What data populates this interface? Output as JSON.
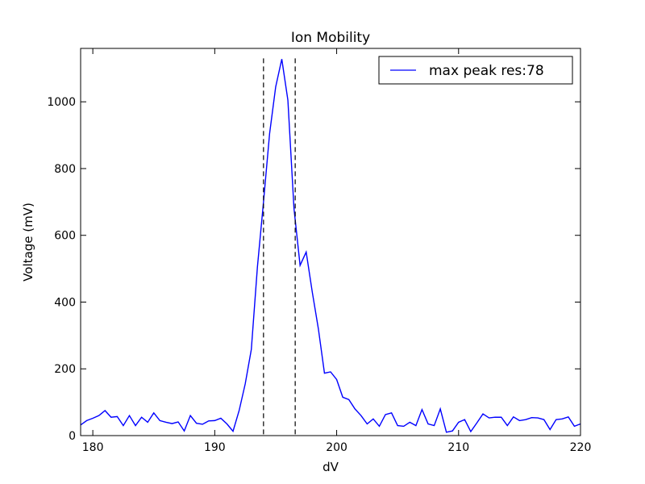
{
  "chart_data": {
    "type": "line",
    "title": "Ion Mobility",
    "xlabel": "dV",
    "ylabel": "Voltage (mV)",
    "xlim": [
      179,
      220
    ],
    "ylim": [
      0,
      1160
    ],
    "xticks": [
      180,
      190,
      200,
      210,
      220
    ],
    "yticks": [
      0,
      200,
      400,
      600,
      800,
      1000
    ],
    "grid": false,
    "legend_position": "top-right",
    "series": [
      {
        "name": "max peak res:78",
        "color": "#0000ff",
        "x": [
          179.0,
          179.5,
          180.0,
          180.5,
          181.0,
          181.5,
          182.0,
          182.5,
          183.0,
          183.5,
          184.0,
          184.5,
          185.0,
          185.5,
          186.0,
          186.5,
          187.0,
          187.5,
          188.0,
          188.5,
          189.0,
          189.5,
          190.0,
          190.5,
          191.0,
          191.5,
          192.0,
          192.5,
          193.0,
          193.5,
          194.0,
          194.5,
          195.0,
          195.5,
          196.0,
          196.5,
          197.0,
          197.5,
          198.0,
          198.5,
          199.0,
          199.5,
          200.0,
          200.5,
          201.0,
          201.5,
          202.0,
          202.5,
          203.0,
          203.5,
          204.0,
          204.5,
          205.0,
          205.5,
          206.0,
          206.5,
          207.0,
          207.5,
          208.0,
          208.5,
          209.0,
          209.5,
          210.0,
          210.5,
          211.0,
          211.5,
          212.0,
          212.5,
          213.0,
          213.5,
          214.0,
          214.5,
          215.0,
          215.5,
          216.0,
          216.5,
          217.0,
          217.5,
          218.0,
          218.5,
          219.0,
          219.5,
          220.0
        ],
        "y": [
          32,
          45,
          52,
          60,
          75,
          55,
          57,
          30,
          60,
          30,
          55,
          40,
          68,
          45,
          40,
          36,
          41,
          14,
          60,
          37,
          34,
          44,
          45,
          52,
          35,
          13,
          75,
          155,
          258,
          505,
          700,
          905,
          1045,
          1128,
          1005,
          680,
          510,
          550,
          430,
          320,
          187,
          191,
          168,
          115,
          108,
          80,
          60,
          35,
          50,
          28,
          63,
          68,
          30,
          28,
          40,
          30,
          78,
          35,
          30,
          80,
          10,
          14,
          40,
          48,
          12,
          38,
          65,
          53,
          55,
          55,
          30,
          56,
          45,
          48,
          54,
          53,
          48,
          18,
          48,
          50,
          56,
          28,
          35
        ]
      }
    ],
    "annotations": [
      {
        "type": "vline",
        "x": 194.0,
        "style": "dashed",
        "color": "#000000"
      },
      {
        "type": "vline",
        "x": 196.6,
        "style": "dashed",
        "color": "#000000"
      }
    ]
  }
}
